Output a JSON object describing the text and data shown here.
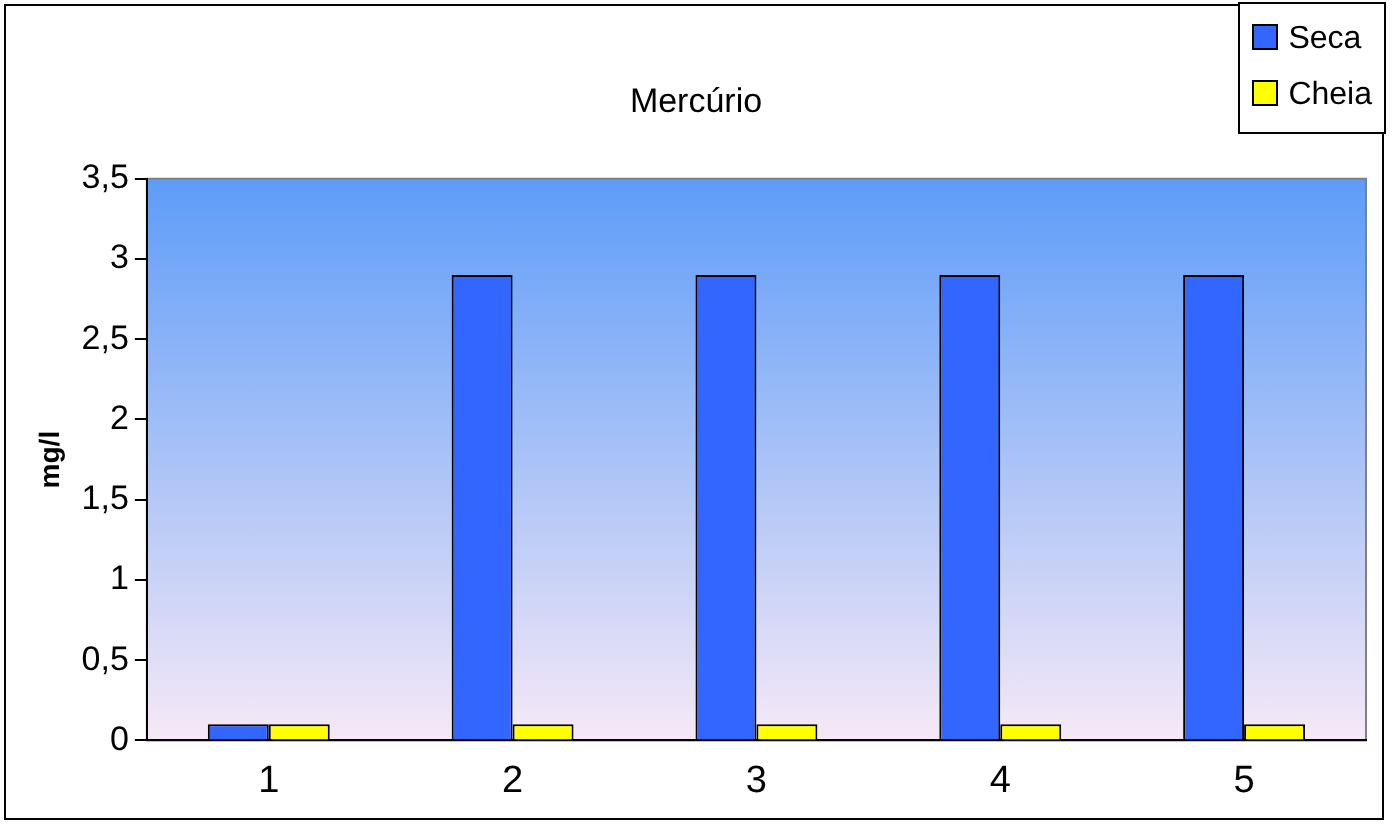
{
  "chart_data": {
    "type": "bar",
    "title": "Mercúrio",
    "ylabel": "mg/l",
    "categories": [
      "1",
      "2",
      "3",
      "4",
      "5"
    ],
    "series": [
      {
        "name": "Seca",
        "color": "#3366ff",
        "values": [
          0.1,
          2.9,
          2.9,
          2.9,
          2.9
        ]
      },
      {
        "name": "Cheia",
        "color": "#ffff00",
        "values": [
          0.1,
          0.1,
          0.1,
          0.1,
          0.1
        ]
      }
    ],
    "ylim": [
      0,
      3.5
    ],
    "yticks": [
      {
        "value": 0,
        "label": "0"
      },
      {
        "value": 0.5,
        "label": "0,5"
      },
      {
        "value": 1,
        "label": "1"
      },
      {
        "value": 1.5,
        "label": "1,5"
      },
      {
        "value": 2,
        "label": "2"
      },
      {
        "value": 2.5,
        "label": "2,5"
      },
      {
        "value": 3,
        "label": "3"
      },
      {
        "value": 3.5,
        "label": "3,5"
      }
    ],
    "grid": false,
    "legend": "top right"
  }
}
